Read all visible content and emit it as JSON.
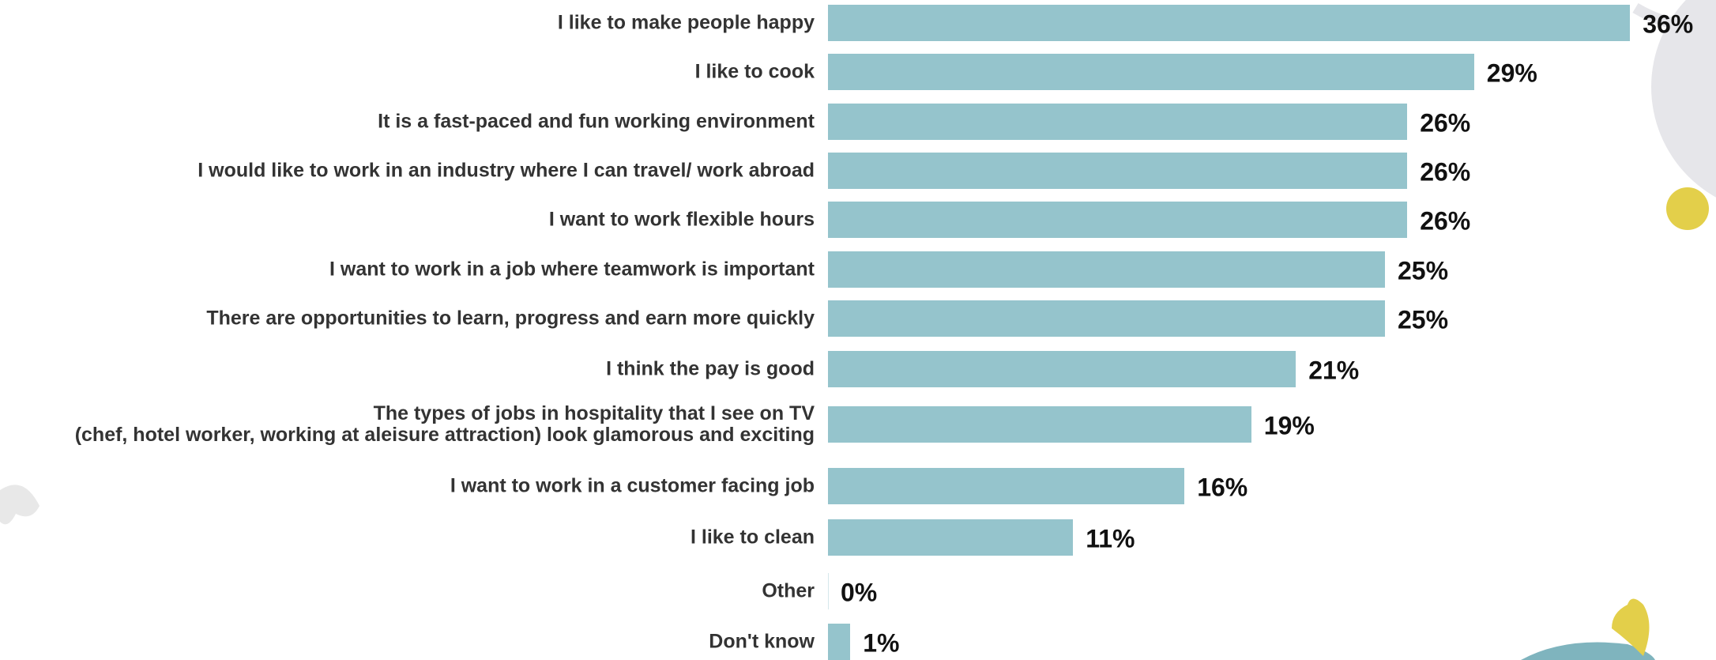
{
  "chart_data": {
    "type": "bar",
    "orientation": "horizontal",
    "categories": [
      "I like to make people happy",
      "I like to cook",
      "It is a fast-paced and fun working environment",
      "I would like to work in an industry where I can travel/ work abroad",
      "I want to work flexible hours",
      "I want to work in a job where teamwork is important",
      "There are opportunities to learn, progress and earn more quickly",
      "I think the pay is good",
      "The types of jobs in hospitality that I see on TV\n(chef, hotel worker, working at aleisure attraction) look glamorous and exciting",
      "I want to work in a customer facing job",
      "I like to clean",
      "Other",
      "Don't know"
    ],
    "values": [
      36,
      29,
      26,
      26,
      26,
      25,
      25,
      21,
      19,
      16,
      11,
      0,
      1
    ],
    "value_labels": [
      "36%",
      "29%",
      "26%",
      "26%",
      "26%",
      "25%",
      "25%",
      "21%",
      "19%",
      "16%",
      "11%",
      "0%",
      "1%"
    ],
    "color": "#95c4cc"
  }
}
